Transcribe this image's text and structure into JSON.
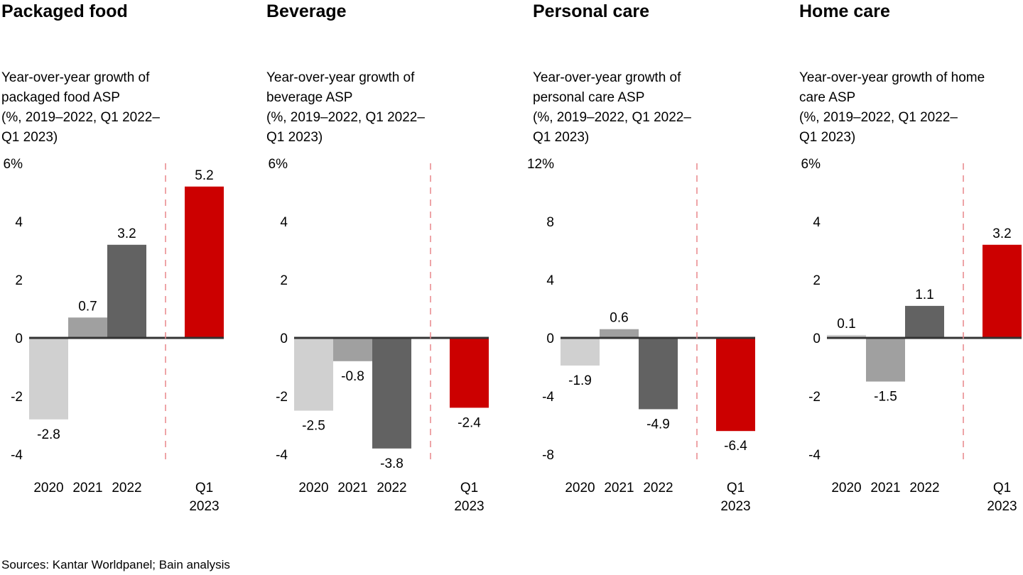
{
  "footer": {
    "sources": "Sources: Kantar Worldpanel; Bain analysis"
  },
  "colors": {
    "bar_2020": "#d0d0d0",
    "bar_2021": "#a0a0a0",
    "bar_2022": "#626262",
    "bar_q1_2023": "#cc0000",
    "baseline": "#333333",
    "divider": "#e8868a"
  },
  "chart_data": [
    {
      "type": "bar",
      "title": "Packaged food",
      "subtitle": "Year-over-year growth of\npackaged food ASP\n(%, 2019–2022, Q1 2022–\nQ1 2023)",
      "categories": [
        "2020",
        "2021",
        "2022",
        "Q1 2023"
      ],
      "category_labels": [
        [
          "2020"
        ],
        [
          "2021"
        ],
        [
          "2022"
        ],
        [
          "Q1",
          "2023"
        ]
      ],
      "values": [
        -2.8,
        0.7,
        3.2,
        5.2
      ],
      "data_labels": [
        "-2.8",
        "0.7",
        "3.2",
        "5.2"
      ],
      "ylim": [
        -4,
        6
      ],
      "yticks": [
        6,
        4,
        2,
        0,
        -2,
        -4
      ],
      "ytick_labels": [
        "6%",
        "4",
        "2",
        "0",
        "-2",
        "-4"
      ],
      "xlabel": "",
      "ylabel": "",
      "grid": false,
      "divider_between": [
        "2022",
        "Q1 2023"
      ]
    },
    {
      "type": "bar",
      "title": "Beverage",
      "subtitle": "Year-over-year growth of\nbeverage ASP\n(%, 2019–2022, Q1 2022–\nQ1 2023)",
      "categories": [
        "2020",
        "2021",
        "2022",
        "Q1 2023"
      ],
      "category_labels": [
        [
          "2020"
        ],
        [
          "2021"
        ],
        [
          "2022"
        ],
        [
          "Q1",
          "2023"
        ]
      ],
      "values": [
        -2.5,
        -0.8,
        -3.8,
        -2.4
      ],
      "data_labels": [
        "-2.5",
        "-0.8",
        "-3.8",
        "-2.4"
      ],
      "ylim": [
        -4,
        6
      ],
      "yticks": [
        6,
        4,
        2,
        0,
        -2,
        -4
      ],
      "ytick_labels": [
        "6%",
        "4",
        "2",
        "0",
        "-2",
        "-4"
      ],
      "xlabel": "",
      "ylabel": "",
      "grid": false,
      "divider_between": [
        "2022",
        "Q1 2023"
      ]
    },
    {
      "type": "bar",
      "title": "Personal care",
      "subtitle": "Year-over-year growth of\npersonal care ASP\n(%, 2019–2022, Q1 2022–\nQ1 2023)",
      "categories": [
        "2020",
        "2021",
        "2022",
        "Q1 2023"
      ],
      "category_labels": [
        [
          "2020"
        ],
        [
          "2021"
        ],
        [
          "2022"
        ],
        [
          "Q1",
          "2023"
        ]
      ],
      "values": [
        -1.9,
        0.6,
        -4.9,
        -6.4
      ],
      "data_labels": [
        "-1.9",
        "0.6",
        "-4.9",
        "-6.4"
      ],
      "ylim": [
        -8,
        12
      ],
      "yticks": [
        12,
        8,
        4,
        0,
        -4,
        -8
      ],
      "ytick_labels": [
        "12%",
        "8",
        "4",
        "0",
        "-4",
        "-8"
      ],
      "xlabel": "",
      "ylabel": "",
      "grid": false,
      "divider_between": [
        "2022",
        "Q1 2023"
      ]
    },
    {
      "type": "bar",
      "title": "Home care",
      "subtitle": "Year-over-year growth of home\ncare ASP\n(%, 2019–2022, Q1 2022–\nQ1 2023)",
      "categories": [
        "2020",
        "2021",
        "2022",
        "Q1 2023"
      ],
      "category_labels": [
        [
          "2020"
        ],
        [
          "2021"
        ],
        [
          "2022"
        ],
        [
          "Q1",
          "2023"
        ]
      ],
      "values": [
        0.1,
        -1.5,
        1.1,
        3.2
      ],
      "data_labels": [
        "0.1",
        "-1.5",
        "1.1",
        "3.2"
      ],
      "ylim": [
        -4,
        6
      ],
      "yticks": [
        6,
        4,
        2,
        0,
        -2,
        -4
      ],
      "ytick_labels": [
        "6%",
        "4",
        "2",
        "0",
        "-2",
        "-4"
      ],
      "xlabel": "",
      "ylabel": "",
      "grid": false,
      "divider_between": [
        "2022",
        "Q1 2023"
      ]
    }
  ]
}
